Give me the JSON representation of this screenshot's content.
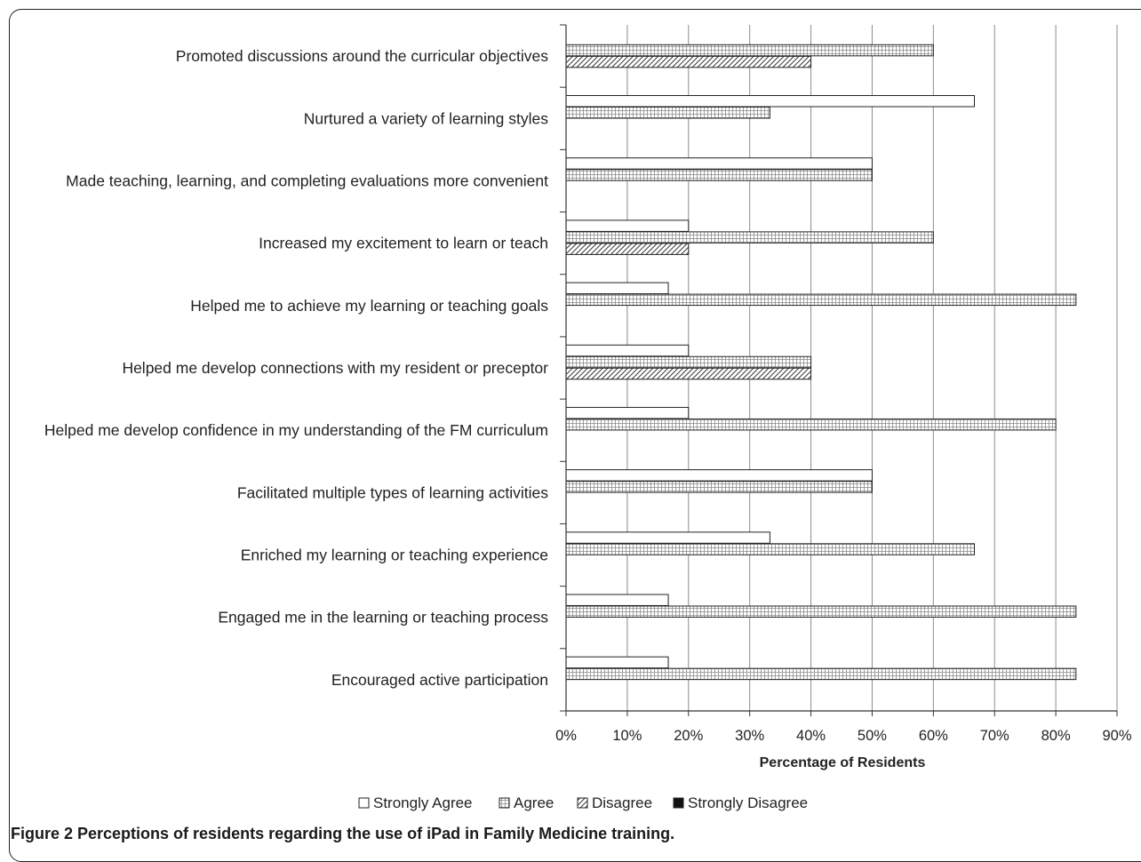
{
  "chart_data": {
    "type": "bar",
    "orientation": "horizontal",
    "categories": [
      "Promoted discussions around the curricular objectives",
      "Nurtured a variety of learning styles",
      "Made teaching, learning, and completing evaluations  more convenient",
      "Increased my excitement to learn or teach",
      "Helped me to achieve my learning or teaching goals",
      "Helped me develop connections with my resident or preceptor",
      "Helped me develop confidence in my understanding of the FM curriculum",
      "Facilitated multiple types of learning activities",
      "Enriched my learning or teaching experience",
      "Engaged me in the learning or teaching process",
      "Encouraged active participation"
    ],
    "series": [
      {
        "name": "Strongly Agree",
        "pattern": "open",
        "values": [
          0,
          66.7,
          50,
          20,
          16.7,
          20,
          20,
          50,
          33.3,
          16.7,
          16.7
        ]
      },
      {
        "name": "Agree",
        "pattern": "grid",
        "values": [
          60,
          33.3,
          50,
          60,
          83.3,
          40,
          80,
          50,
          66.7,
          83.3,
          83.3
        ]
      },
      {
        "name": "Disagree",
        "pattern": "hatch",
        "values": [
          40,
          0,
          0,
          20,
          0,
          40,
          0,
          0,
          0,
          0,
          0
        ]
      },
      {
        "name": "Strongly Disagree",
        "pattern": "solid",
        "values": [
          0,
          0,
          0,
          0,
          0,
          0,
          0,
          0,
          0,
          0,
          0
        ]
      }
    ],
    "xlim": [
      0,
      90
    ],
    "xticks": [
      "0%",
      "10%",
      "20%",
      "30%",
      "40%",
      "50%",
      "60%",
      "70%",
      "80%",
      "90%"
    ],
    "xlabel": "Percentage of Residents",
    "ylabel": "",
    "grid": "vertical",
    "legend_position": "bottom",
    "legend_labels": [
      "Strongly Agree",
      "Agree",
      "Disagree",
      "Strongly Disagree"
    ]
  },
  "caption": "Figure 2 Perceptions of residents regarding the use of iPad in Family Medicine training."
}
